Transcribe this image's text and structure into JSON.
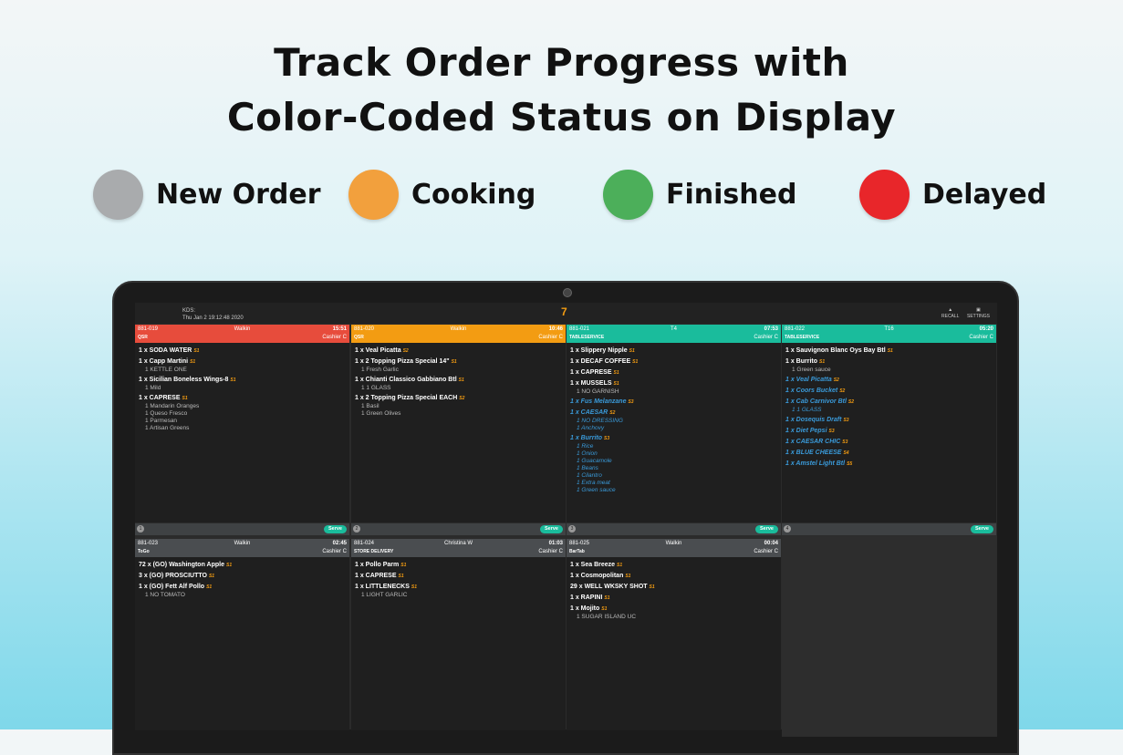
{
  "headline": {
    "line1": "Track Order Progress with",
    "line2": "Color-Coded Status on Display"
  },
  "legend": [
    {
      "label": "New Order",
      "color": "#a9abad"
    },
    {
      "label": "Cooking",
      "color": "#f2a03d"
    },
    {
      "label": "Finished",
      "color": "#4caf5a"
    },
    {
      "label": "Delayed",
      "color": "#e8262a"
    }
  ],
  "kds": {
    "title": "KDS:",
    "datetime": "Thu Jan  2 19:12:48 2020",
    "order_count": "7",
    "recall_label": "RECALL",
    "settings_label": "SETTINGS"
  },
  "status_colors": {
    "delayed": "#e74c3c",
    "cooking": "#f39c12",
    "finished": "#1abc9c",
    "new": "#4a4d50"
  },
  "cards": [
    {
      "id": "881-019",
      "source": "Walkin",
      "time": "15:51",
      "type": "QSR",
      "cashier": "Cashier C",
      "status": "delayed",
      "items": [
        {
          "text": "1 x SODA WATER",
          "seat": "S1"
        },
        {
          "text": "1 x Capp Martini",
          "seat": "S1",
          "mods": [
            "1 KETTLE ONE"
          ]
        },
        {
          "text": "1 x Sicilian Boneless Wings-8",
          "seat": "S1",
          "mods": [
            "1 Mild"
          ]
        },
        {
          "text": "1 x CAPRESE",
          "seat": "S1",
          "mods": [
            "1 Mandarin Oranges",
            "1 Queso Fresco",
            "1 Parmesan",
            "1 Artisan Greens"
          ]
        }
      ]
    },
    {
      "id": "881-020",
      "source": "Walkin",
      "time": "10:46",
      "type": "QSR",
      "cashier": "Cashier C",
      "status": "cooking",
      "items": [
        {
          "text": "1 x Veal Picatta",
          "seat": "S2"
        },
        {
          "text": "1 x 2 Topping Pizza Special 14\"",
          "seat": "S1",
          "mods": [
            "1 Fresh Garlic"
          ]
        },
        {
          "text": "1 x Chianti Classico Gabbiano Btl",
          "seat": "S1",
          "mods": [
            "1 1 GLASS"
          ]
        },
        {
          "text": "1 x 2 Topping Pizza Special EACH",
          "seat": "S2",
          "mods": [
            "1 Basil",
            "1 Green Olives"
          ]
        }
      ]
    },
    {
      "id": "881-021",
      "source": "T4",
      "time": "07:53",
      "type": "TABLESERVICE",
      "cashier": "Cashier C",
      "status": "finished",
      "items": [
        {
          "text": "1 x Slippery Nipple",
          "seat": "S1"
        },
        {
          "text": "1 x DECAF COFFEE",
          "seat": "S1"
        },
        {
          "text": "1 x CAPRESE",
          "seat": "S1"
        },
        {
          "text": "1 x MUSSELS",
          "seat": "S1",
          "mods": [
            "1 NO GARNISH"
          ]
        },
        {
          "text": "1 x Fus Melanzane",
          "seat": "S3",
          "blue": true
        },
        {
          "text": "1 x CAESAR",
          "seat": "S2",
          "blue": true,
          "mods": [
            "1 NO DRESSING",
            "1 Anchovy"
          ]
        },
        {
          "text": "1 x Burrito",
          "seat": "S3",
          "blue": true,
          "mods": [
            "1 Rice",
            "1 Onion",
            "1 Guacamole",
            "1 Beans",
            "1 Cilantro",
            "1 Extra meat",
            "1 Green sauce"
          ]
        }
      ]
    },
    {
      "id": "881-022",
      "source": "T16",
      "time": "05:20",
      "type": "TABLESERVICE",
      "cashier": "Cashier C",
      "status": "finished",
      "items": [
        {
          "text": "1 x Sauvignon Blanc Oys Bay Btl",
          "seat": "S1"
        },
        {
          "text": "1 x Burrito",
          "seat": "S1",
          "mods": [
            "1 Green sauce"
          ]
        },
        {
          "text": "1 x Veal Picatta",
          "seat": "S2",
          "blue": true
        },
        {
          "text": "1 x Coors Bucket",
          "seat": "S2",
          "blue": true
        },
        {
          "text": "1 x Cab Carnivor  Btl",
          "seat": "S2",
          "blue": true,
          "mods": [
            "1 1 GLASS"
          ]
        },
        {
          "text": "1 x Dosequis Draft",
          "seat": "S3",
          "blue": true
        },
        {
          "text": "1 x Diet Pepsi",
          "seat": "S3",
          "blue": true
        },
        {
          "text": "1 x CAESAR CHIC",
          "seat": "S3",
          "blue": true
        },
        {
          "text": "1 x BLUE CHEESE",
          "seat": "S4",
          "blue": true
        },
        {
          "text": "1 x Amstel Light Btl",
          "seat": "S5",
          "blue": true
        }
      ]
    },
    {
      "id": "881-023",
      "source": "Walkin",
      "time": "02:45",
      "type": "ToGo",
      "cashier": "Cashier C",
      "status": "new",
      "items": [
        {
          "text": "72 x (GO) Washington Apple",
          "seat": "S1"
        },
        {
          "text": "3 x (GO) PROSCIUTTO",
          "seat": "S1"
        },
        {
          "text": "1 x (GO) Fett Alf Pollo",
          "seat": "S1",
          "mods": [
            "1 NO TOMATO"
          ]
        }
      ]
    },
    {
      "id": "881-024",
      "source": "Christina W",
      "time": "01:03",
      "type": "STORE DELIVERY",
      "cashier": "Cashier C",
      "status": "new",
      "items": [
        {
          "text": "1 x Pollo Parm",
          "seat": "S1"
        },
        {
          "text": "1 x CAPRESE",
          "seat": "S1"
        },
        {
          "text": "1 x LITTLENECKS",
          "seat": "S1",
          "mods": [
            "1 LIGHT GARLIC"
          ]
        }
      ]
    },
    {
      "id": "881-025",
      "source": "Walkin",
      "time": "00:04",
      "type": "BarTab",
      "cashier": "Cashier C",
      "status": "new",
      "items": [
        {
          "text": "1 x Sea Breeze",
          "seat": "S1"
        },
        {
          "text": "1 x Cosmopolitan",
          "seat": "S1"
        },
        {
          "text": "29 x WELL WKSKY SHOT",
          "seat": "S1"
        },
        {
          "text": "1 x RAPINI",
          "seat": "S1"
        },
        {
          "text": "1 x Mojito",
          "seat": "S1",
          "mods": [
            "1 SUGAR ISLAND UC"
          ]
        }
      ]
    }
  ],
  "footers": [
    {
      "num": "1",
      "serve": "Serve"
    },
    {
      "num": "2",
      "serve": "Serve"
    },
    {
      "num": "3",
      "serve": "Serve"
    },
    {
      "num": "4",
      "serve": "Serve"
    }
  ]
}
